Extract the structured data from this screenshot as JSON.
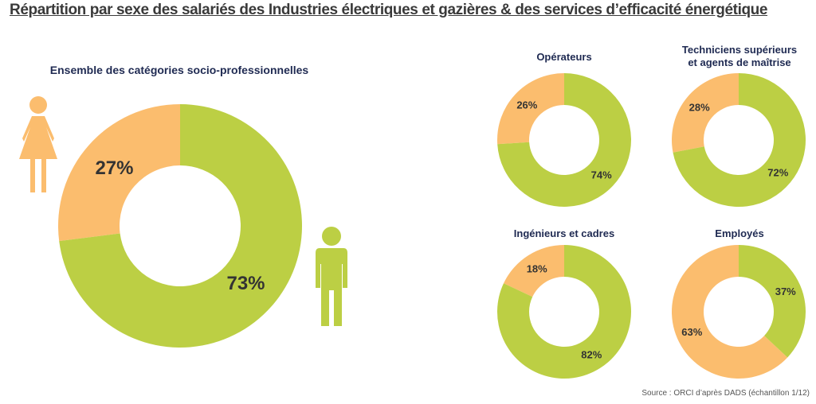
{
  "page": {
    "title": "Répartition par sexe des salariés des Industries électriques et gazières & des services d’efficacité énergétique",
    "source": "Source : ORCI d’après DADS (échantillon 1/12)"
  },
  "colors": {
    "women": "#fbbd6e",
    "men": "#bccf44",
    "text": "#333333",
    "heading": "#1f2a52"
  },
  "icons": {
    "woman": "woman-figure-icon",
    "man": "man-figure-icon"
  },
  "chart_data": [
    {
      "type": "pie",
      "title": "Ensemble des catégories socio-professionnelles",
      "slices": [
        {
          "label": "27%",
          "value": 27,
          "color": "#fbbd6e"
        },
        {
          "label": "73%",
          "value": 73,
          "color": "#bccf44"
        }
      ]
    },
    {
      "type": "pie",
      "title": "Opérateurs",
      "slices": [
        {
          "label": "26%",
          "value": 26,
          "color": "#fbbd6e"
        },
        {
          "label": "74%",
          "value": 74,
          "color": "#bccf44"
        }
      ]
    },
    {
      "type": "pie",
      "title": "Techniciens supérieurs\net agents de maîtrise",
      "slices": [
        {
          "label": "28%",
          "value": 28,
          "color": "#fbbd6e"
        },
        {
          "label": "72%",
          "value": 72,
          "color": "#bccf44"
        }
      ]
    },
    {
      "type": "pie",
      "title": "Ingénieurs et cadres",
      "slices": [
        {
          "label": "18%",
          "value": 18,
          "color": "#fbbd6e"
        },
        {
          "label": "82%",
          "value": 82,
          "color": "#bccf44"
        }
      ]
    },
    {
      "type": "pie",
      "title": "Employés",
      "slices": [
        {
          "label": "63%",
          "value": 63,
          "color": "#fbbd6e"
        },
        {
          "label": "37%",
          "value": 37,
          "color": "#bccf44"
        }
      ]
    }
  ]
}
